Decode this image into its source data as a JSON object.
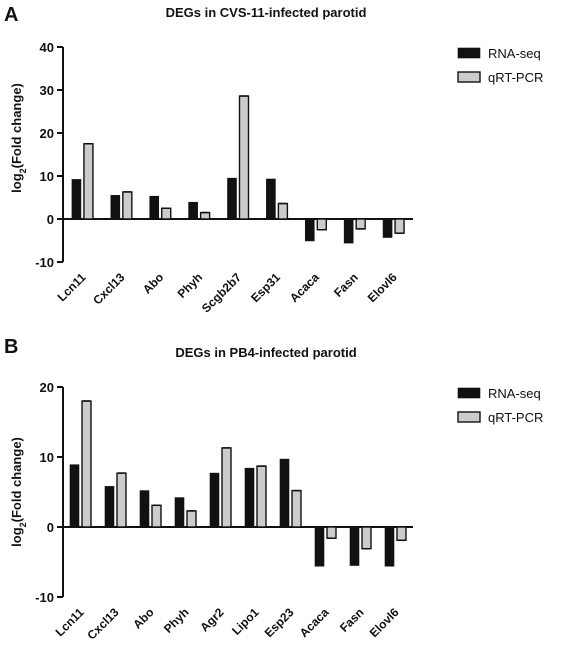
{
  "chart_data": [
    {
      "type": "bar",
      "panel": "A",
      "title": "DEGs in CVS-11-infected parotid",
      "ylabel_main": "log",
      "ylabel_sub": "2",
      "ylabel_rest": "(Fold change)",
      "ylim": [
        -10,
        40
      ],
      "yticks": [
        -10,
        0,
        10,
        20,
        30,
        40
      ],
      "legend_position": "top-right",
      "categories": [
        "Lcn11",
        "Cxcl13",
        "Abo",
        "Phyh",
        "Scgb2b7",
        "Esp31",
        "Acaca",
        "Fasn",
        "Elovl6"
      ],
      "series": [
        {
          "name": "RNA-seq",
          "color": "#111111",
          "values": [
            9.2,
            5.5,
            5.3,
            3.9,
            9.5,
            9.3,
            -5.1,
            -5.6,
            -4.3
          ]
        },
        {
          "name": "qRT-PCR",
          "color": "#cccccc",
          "values": [
            17.5,
            6.3,
            2.5,
            1.5,
            28.6,
            3.6,
            -2.5,
            -2.3,
            -3.3
          ]
        }
      ]
    },
    {
      "type": "bar",
      "panel": "B",
      "title": "DEGs in PB4-infected parotid",
      "ylabel_main": "log",
      "ylabel_sub": "2",
      "ylabel_rest": "(Fold change)",
      "ylim": [
        -10,
        20
      ],
      "yticks": [
        -10,
        0,
        10,
        20
      ],
      "legend_position": "top-right",
      "categories": [
        "Lcn11",
        "Cxcl13",
        "Abo",
        "Phyh",
        "Agr2",
        "Lipo1",
        "Esp23",
        "Acaca",
        "Fasn",
        "Elovl6"
      ],
      "series": [
        {
          "name": "RNA-seq",
          "color": "#111111",
          "values": [
            8.9,
            5.8,
            5.2,
            4.2,
            7.7,
            8.4,
            9.7,
            -5.6,
            -5.5,
            -5.6
          ]
        },
        {
          "name": "qRT-PCR",
          "color": "#cccccc",
          "values": [
            18.0,
            7.7,
            3.1,
            2.3,
            11.3,
            8.7,
            5.2,
            -1.6,
            -3.1,
            -1.9
          ]
        }
      ]
    }
  ]
}
